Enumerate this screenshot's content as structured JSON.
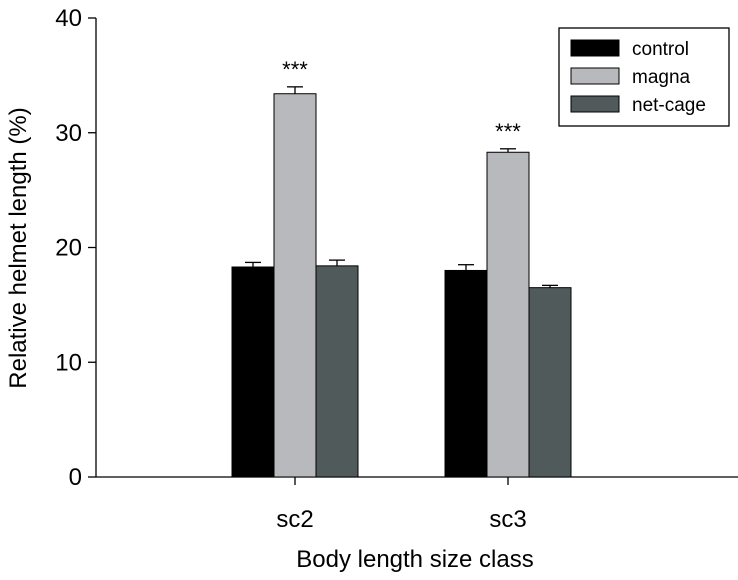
{
  "chart_data": {
    "type": "bar",
    "title": "",
    "xlabel": "Body length size class",
    "ylabel": "Relative helmet length (%)",
    "ylim": [
      0,
      40
    ],
    "yticks": [
      0,
      10,
      20,
      30,
      40
    ],
    "grid": false,
    "legend_position": "top-right",
    "categories": [
      "sc2",
      "sc3"
    ],
    "series": [
      {
        "name": "control",
        "color": "#000000",
        "values": [
          18.3,
          18.0
        ],
        "errors": [
          0.4,
          0.5
        ]
      },
      {
        "name": "magna",
        "color": "#b8b9bc",
        "values": [
          33.4,
          28.3
        ],
        "errors": [
          0.6,
          0.3
        ]
      },
      {
        "name": "net-cage",
        "color": "#515a5b",
        "values": [
          18.4,
          16.5
        ],
        "errors": [
          0.5,
          0.2
        ]
      }
    ],
    "annotations": [
      {
        "category": "sc2",
        "series": "magna",
        "text": "***"
      },
      {
        "category": "sc3",
        "series": "magna",
        "text": "***"
      }
    ]
  }
}
